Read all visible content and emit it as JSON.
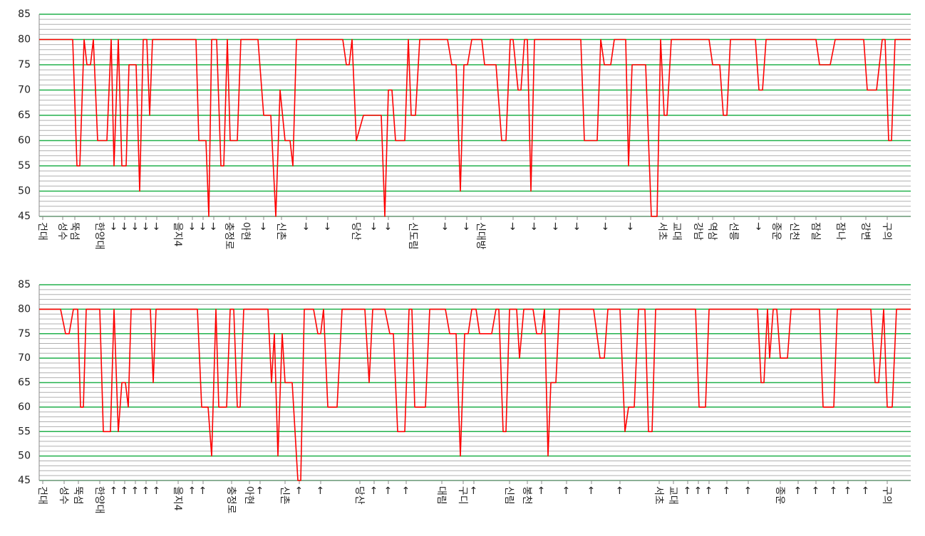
{
  "chart_data": [
    {
      "type": "line",
      "ylim": [
        45,
        85
      ],
      "yticks": [
        45,
        50,
        55,
        60,
        65,
        70,
        75,
        80,
        85
      ],
      "grid": true,
      "minor_grid": true,
      "xlim": [
        55,
        1278
      ],
      "xticks": [
        {
          "value": 60,
          "label": "건대"
        },
        {
          "value": 88,
          "label": "성수"
        },
        {
          "value": 105,
          "label": "뚝섬"
        },
        {
          "value": 140,
          "label": "한양대"
        },
        {
          "value": 160,
          "label": "→"
        },
        {
          "value": 175,
          "label": "→"
        },
        {
          "value": 190,
          "label": "→"
        },
        {
          "value": 205,
          "label": "→"
        },
        {
          "value": 220,
          "label": "→"
        },
        {
          "value": 250,
          "label": "을지4"
        },
        {
          "value": 270,
          "label": "→"
        },
        {
          "value": 285,
          "label": "→"
        },
        {
          "value": 300,
          "label": "→"
        },
        {
          "value": 322,
          "label": "충정로"
        },
        {
          "value": 345,
          "label": "아현"
        },
        {
          "value": 370,
          "label": "→"
        },
        {
          "value": 395,
          "label": "신촌"
        },
        {
          "value": 430,
          "label": "→"
        },
        {
          "value": 460,
          "label": "→"
        },
        {
          "value": 500,
          "label": "당산"
        },
        {
          "value": 525,
          "label": "→"
        },
        {
          "value": 545,
          "label": "→"
        },
        {
          "value": 580,
          "label": "신도림"
        },
        {
          "value": 625,
          "label": "→"
        },
        {
          "value": 655,
          "label": "→"
        },
        {
          "value": 675,
          "label": "신대방"
        },
        {
          "value": 720,
          "label": "→"
        },
        {
          "value": 750,
          "label": "→"
        },
        {
          "value": 780,
          "label": "→"
        },
        {
          "value": 810,
          "label": "→"
        },
        {
          "value": 850,
          "label": "→"
        },
        {
          "value": 885,
          "label": "→"
        },
        {
          "value": 930,
          "label": "서초"
        },
        {
          "value": 950,
          "label": "교대"
        },
        {
          "value": 980,
          "label": "강남"
        },
        {
          "value": 1000,
          "label": "역삼"
        },
        {
          "value": 1030,
          "label": "선릉"
        },
        {
          "value": 1065,
          "label": "→"
        },
        {
          "value": 1090,
          "label": "종운"
        },
        {
          "value": 1115,
          "label": "신천"
        },
        {
          "value": 1145,
          "label": "잠실"
        },
        {
          "value": 1180,
          "label": "잠나"
        },
        {
          "value": 1215,
          "label": "강변"
        },
        {
          "value": 1245,
          "label": "구의"
        }
      ],
      "series": [
        {
          "color": "#ff0000",
          "x": [
            55,
            102,
            108,
            112,
            118,
            122,
            127,
            131,
            137,
            150,
            156,
            160,
            166,
            171,
            177,
            181,
            191,
            196,
            201,
            206,
            210,
            214,
            275,
            279,
            289,
            293,
            297,
            304,
            310,
            314,
            319,
            323,
            333,
            338,
            362,
            370,
            380,
            387,
            393,
            400,
            407,
            411,
            416,
            481,
            486,
            490,
            494,
            500,
            510,
            535,
            540,
            545,
            550,
            555,
            568,
            573,
            577,
            583,
            589,
            628,
            634,
            640,
            646,
            651,
            656,
            662,
            676,
            680,
            696,
            704,
            710,
            716,
            720,
            727,
            731,
            736,
            740,
            745,
            750,
            815,
            820,
            838,
            843,
            848,
            857,
            862,
            878,
            882,
            887,
            906,
            914,
            922,
            927,
            932,
            936,
            942,
            995,
            1000,
            1010,
            1015,
            1020,
            1025,
            1060,
            1065,
            1070,
            1075,
            1145,
            1150,
            1165,
            1172,
            1212,
            1217,
            1230,
            1238,
            1242,
            1247,
            1251,
            1256,
            1278
          ],
          "values": [
            80,
            80,
            55,
            55,
            80,
            75,
            75,
            80,
            60,
            60,
            80,
            55,
            80,
            55,
            55,
            75,
            75,
            50,
            80,
            80,
            65,
            80,
            80,
            60,
            60,
            45,
            80,
            80,
            55,
            55,
            80,
            60,
            60,
            80,
            80,
            65,
            65,
            45,
            70,
            60,
            60,
            55,
            80,
            80,
            75,
            75,
            80,
            60,
            65,
            65,
            45,
            70,
            70,
            60,
            60,
            80,
            65,
            65,
            80,
            80,
            75,
            75,
            50,
            75,
            75,
            80,
            80,
            75,
            75,
            60,
            60,
            80,
            80,
            70,
            70,
            80,
            80,
            50,
            80,
            80,
            60,
            60,
            80,
            75,
            75,
            80,
            80,
            55,
            75,
            75,
            45,
            45,
            80,
            65,
            65,
            80,
            80,
            75,
            75,
            65,
            65,
            80,
            80,
            70,
            70,
            80,
            80,
            75,
            75,
            80,
            80,
            70,
            70,
            80,
            80,
            60,
            60,
            80,
            80
          ]
        }
      ]
    },
    {
      "type": "line",
      "ylim": [
        45,
        85
      ],
      "yticks": [
        45,
        50,
        55,
        60,
        65,
        70,
        75,
        80,
        85
      ],
      "grid": true,
      "minor_grid": true,
      "xlim": [
        55,
        1278
      ],
      "xticks": [
        {
          "value": 60,
          "label": "건대"
        },
        {
          "value": 90,
          "label": "성수"
        },
        {
          "value": 110,
          "label": "뚝섬"
        },
        {
          "value": 140,
          "label": "한양대"
        },
        {
          "value": 160,
          "label": "←"
        },
        {
          "value": 175,
          "label": "←"
        },
        {
          "value": 190,
          "label": "←"
        },
        {
          "value": 205,
          "label": "←"
        },
        {
          "value": 220,
          "label": "←"
        },
        {
          "value": 250,
          "label": "을지4"
        },
        {
          "value": 270,
          "label": "←"
        },
        {
          "value": 285,
          "label": "←"
        },
        {
          "value": 325,
          "label": "충정로"
        },
        {
          "value": 350,
          "label": "아현"
        },
        {
          "value": 365,
          "label": "←"
        },
        {
          "value": 400,
          "label": "신촌"
        },
        {
          "value": 420,
          "label": "←"
        },
        {
          "value": 450,
          "label": "←"
        },
        {
          "value": 505,
          "label": "당산"
        },
        {
          "value": 525,
          "label": "←"
        },
        {
          "value": 545,
          "label": "←"
        },
        {
          "value": 570,
          "label": "←"
        },
        {
          "value": 620,
          "label": "대림"
        },
        {
          "value": 650,
          "label": "구디"
        },
        {
          "value": 665,
          "label": "←"
        },
        {
          "value": 715,
          "label": "신림"
        },
        {
          "value": 740,
          "label": "봉천"
        },
        {
          "value": 760,
          "label": "←"
        },
        {
          "value": 795,
          "label": "←"
        },
        {
          "value": 830,
          "label": "←"
        },
        {
          "value": 870,
          "label": "←"
        },
        {
          "value": 925,
          "label": "서초"
        },
        {
          "value": 945,
          "label": "교대"
        },
        {
          "value": 965,
          "label": "←"
        },
        {
          "value": 980,
          "label": "←"
        },
        {
          "value": 995,
          "label": "←"
        },
        {
          "value": 1020,
          "label": "←"
        },
        {
          "value": 1050,
          "label": "←"
        },
        {
          "value": 1095,
          "label": "종운"
        },
        {
          "value": 1120,
          "label": "←"
        },
        {
          "value": 1145,
          "label": "←"
        },
        {
          "value": 1170,
          "label": "←"
        },
        {
          "value": 1190,
          "label": "←"
        },
        {
          "value": 1215,
          "label": "←"
        },
        {
          "value": 1245,
          "label": "구의"
        }
      ],
      "series": [
        {
          "color": "#ff0000",
          "x": [
            55,
            85,
            92,
            97,
            103,
            109,
            113,
            117,
            121,
            140,
            145,
            155,
            160,
            166,
            171,
            176,
            180,
            184,
            211,
            215,
            219,
            277,
            283,
            292,
            297,
            303,
            307,
            318,
            323,
            328,
            333,
            337,
            342,
            376,
            381,
            385,
            390,
            396,
            400,
            410,
            418,
            422,
            427,
            440,
            446,
            450,
            454,
            460,
            473,
            480,
            512,
            518,
            523,
            540,
            547,
            552,
            558,
            568,
            574,
            578,
            582,
            597,
            603,
            625,
            631,
            640,
            646,
            652,
            657,
            662,
            668,
            673,
            690,
            696,
            700,
            706,
            710,
            715,
            725,
            729,
            735,
            748,
            753,
            760,
            764,
            769,
            773,
            780,
            785,
            833,
            842,
            848,
            853,
            870,
            877,
            882,
            890,
            896,
            905,
            910,
            915,
            920,
            976,
            981,
            990,
            995,
            1063,
            1068,
            1072,
            1077,
            1080,
            1085,
            1090,
            1095,
            1105,
            1110,
            1150,
            1155,
            1170,
            1175,
            1222,
            1228,
            1233,
            1240,
            1245,
            1252,
            1258,
            1278
          ],
          "values": [
            80,
            80,
            75,
            75,
            80,
            80,
            60,
            60,
            80,
            80,
            55,
            55,
            80,
            55,
            65,
            65,
            60,
            80,
            80,
            65,
            80,
            80,
            60,
            60,
            50,
            80,
            60,
            60,
            80,
            80,
            60,
            60,
            80,
            80,
            65,
            75,
            50,
            75,
            65,
            65,
            45,
            45,
            80,
            80,
            75,
            75,
            80,
            60,
            60,
            80,
            80,
            65,
            80,
            80,
            75,
            75,
            55,
            55,
            80,
            80,
            60,
            60,
            80,
            80,
            75,
            75,
            50,
            75,
            75,
            80,
            80,
            75,
            75,
            80,
            80,
            55,
            55,
            80,
            80,
            70,
            80,
            80,
            75,
            75,
            80,
            50,
            65,
            65,
            80,
            80,
            70,
            70,
            80,
            80,
            55,
            60,
            60,
            80,
            80,
            55,
            55,
            80,
            80,
            60,
            60,
            80,
            80,
            65,
            65,
            80,
            70,
            80,
            80,
            70,
            70,
            80,
            80,
            60,
            60,
            80,
            80,
            65,
            65,
            80,
            60,
            60,
            80,
            80
          ]
        }
      ]
    }
  ]
}
